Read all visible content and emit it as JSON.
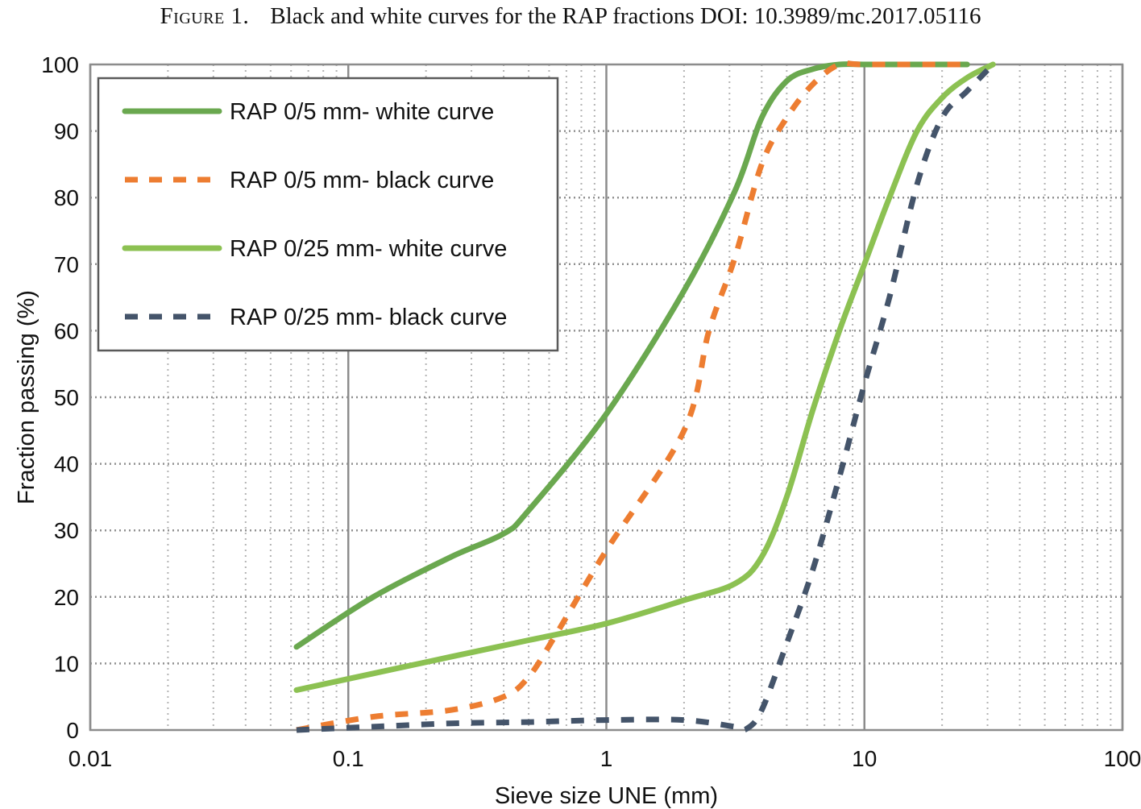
{
  "caption": {
    "label": "Figure 1.",
    "text": "Black and white curves for the RAP fractions DOI: 10.3989/mc.2017.05116"
  },
  "chart_data": {
    "type": "line",
    "title": "",
    "xlabel": "Sieve size UNE (mm)",
    "ylabel": "Fraction passing (%)",
    "xscale": "log",
    "xlim": [
      0.01,
      100
    ],
    "ylim": [
      0,
      100
    ],
    "xticks": [
      0.01,
      0.1,
      1,
      10,
      100
    ],
    "xtick_labels": [
      "0.01",
      "0.1",
      "1",
      "10",
      "100"
    ],
    "yticks": [
      0,
      10,
      20,
      30,
      40,
      50,
      60,
      70,
      80,
      90,
      100
    ],
    "ytick_labels": [
      "0",
      "10",
      "20",
      "30",
      "40",
      "50",
      "60",
      "70",
      "80",
      "90",
      "100"
    ],
    "grid": true,
    "legend_position": "top-left",
    "series": [
      {
        "name": "RAP 0/5 mm- white curve",
        "color": "#6aa84f",
        "dash": "solid",
        "x": [
          0.063,
          0.125,
          0.25,
          0.4,
          0.5,
          1,
          2,
          3.15,
          4,
          5,
          6.3,
          8,
          10,
          12.5,
          20,
          25
        ],
        "y": [
          12.5,
          20,
          26,
          29.5,
          33,
          47.5,
          66,
          81,
          92,
          97.5,
          99.3,
          100,
          100,
          100,
          100,
          100
        ]
      },
      {
        "name": "RAP 0/5 mm- black curve",
        "color": "#ed7d31",
        "dash": "dashed",
        "x": [
          0.063,
          0.125,
          0.25,
          0.4,
          0.5,
          0.63,
          1,
          2,
          2.5,
          3.15,
          4,
          5,
          6.3,
          8,
          10,
          25
        ],
        "y": [
          0,
          2,
          3,
          5,
          8,
          14,
          27,
          45,
          60,
          71,
          85,
          92,
          97,
          100,
          100,
          100
        ]
      },
      {
        "name": "RAP 0/25 mm- white curve",
        "color": "#8cc152",
        "dash": "solid",
        "x": [
          0.063,
          0.125,
          0.25,
          0.5,
          1,
          2,
          3.15,
          4,
          5,
          6.3,
          8,
          10,
          12.5,
          16,
          20,
          25,
          31.5
        ],
        "y": [
          6,
          8.5,
          11,
          13.5,
          16,
          19.5,
          22,
          26,
          35,
          48,
          60,
          70,
          80,
          90,
          95,
          98,
          100
        ]
      },
      {
        "name": "RAP 0/25 mm- black curve",
        "color": "#44546a",
        "dash": "dashed",
        "x": [
          0.063,
          0.125,
          0.25,
          0.5,
          1,
          2,
          3.15,
          3.5,
          4,
          5,
          6.3,
          8,
          10,
          12.5,
          16,
          20,
          25,
          31.5
        ],
        "y": [
          0,
          0.5,
          1,
          1.2,
          1.5,
          1.5,
          0.5,
          0.2,
          3,
          13,
          24,
          38,
          52,
          65,
          82,
          92,
          96,
          100
        ]
      }
    ]
  }
}
